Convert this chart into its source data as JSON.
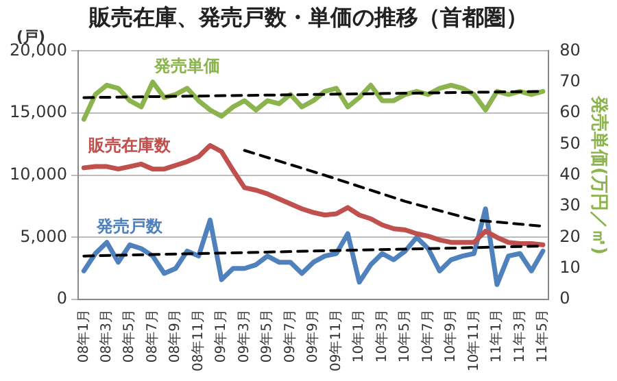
{
  "chart_data": {
    "type": "line",
    "title": "販売在庫、発売戸数・単価の推移（首都圏）",
    "ylabel": "(戸)",
    "y2label": "発売単価(万円／㎡)",
    "categories": [
      "08年1月",
      null,
      "08年3月",
      null,
      "08年5月",
      null,
      "08年7月",
      null,
      "08年9月",
      null,
      "08年11月",
      null,
      "09年1月",
      null,
      "09年3月",
      null,
      "09年5月",
      null,
      "09年7月",
      null,
      "09年9月",
      null,
      "09年11月",
      null,
      "10年1月",
      null,
      "10年3月",
      null,
      "10年5月",
      null,
      "10年7月",
      null,
      "10年9月",
      null,
      "10年11月",
      null,
      "11年1月",
      null,
      "11年3月",
      null,
      "11年5月"
    ],
    "series": [
      {
        "name": "発売単価",
        "color": "#8cb44e",
        "axis": "y2",
        "values": [
          58,
          66,
          69,
          68,
          64,
          62,
          70,
          65,
          66,
          68,
          64,
          61,
          59,
          62,
          64,
          61,
          64,
          63,
          66,
          62,
          64,
          67,
          68,
          62,
          65,
          69,
          64,
          64,
          66,
          67,
          66,
          68,
          69,
          68,
          66,
          61,
          67,
          66,
          67,
          66,
          67
        ]
      },
      {
        "name": "販売在庫数",
        "color": "#c0504d",
        "values": [
          10600,
          10700,
          10700,
          10500,
          10700,
          10900,
          10500,
          10500,
          10800,
          11100,
          11500,
          12400,
          11900,
          10400,
          9000,
          8800,
          8500,
          8100,
          7700,
          7300,
          7000,
          6800,
          6900,
          7400,
          6800,
          6500,
          6000,
          5700,
          5600,
          5300,
          5100,
          4800,
          4600,
          4600,
          4600,
          5500,
          5000,
          4600,
          4500,
          4500,
          4400
        ]
      },
      {
        "name": "発売戸数",
        "color": "#4f81bd",
        "values": [
          2300,
          3700,
          4600,
          3000,
          4400,
          4100,
          3500,
          2100,
          2500,
          3900,
          3500,
          6400,
          1600,
          2500,
          2500,
          2800,
          3500,
          3000,
          3000,
          2100,
          3000,
          3500,
          3700,
          5300,
          1400,
          2800,
          3700,
          3200,
          3900,
          5000,
          4100,
          2300,
          3200,
          3500,
          3700,
          7300,
          1200,
          3500,
          3700,
          2300,
          3900
        ]
      },
      {
        "color": "#000000",
        "axis": "y2",
        "line_style": "dashed",
        "values": [
          65,
          null,
          null,
          null,
          null,
          null,
          null,
          null,
          null,
          null,
          null,
          null,
          null,
          null,
          null,
          null,
          null,
          null,
          null,
          null,
          null,
          null,
          null,
          null,
          null,
          null,
          null,
          null,
          null,
          null,
          null,
          null,
          null,
          null,
          null,
          null,
          null,
          null,
          null,
          null,
          67
        ]
      },
      {
        "color": "#000000",
        "line_style": "dashed",
        "values": [
          3500,
          null,
          null,
          null,
          null,
          null,
          null,
          null,
          null,
          null,
          null,
          null,
          null,
          null,
          null,
          null,
          null,
          null,
          null,
          null,
          null,
          null,
          null,
          null,
          null,
          null,
          null,
          null,
          null,
          null,
          null,
          null,
          null,
          null,
          null,
          null,
          null,
          null,
          null,
          null,
          4300
        ]
      },
      {
        "color": "#000000",
        "line_style": "dashed",
        "values": [
          null,
          null,
          null,
          null,
          null,
          null,
          null,
          null,
          null,
          null,
          null,
          null,
          null,
          null,
          12000,
          null,
          null,
          null,
          null,
          null,
          null,
          10000,
          null,
          null,
          null,
          null,
          null,
          null,
          7900,
          null,
          null,
          null,
          null,
          null,
          6400,
          null,
          null,
          null,
          null,
          null,
          5900
        ]
      }
    ],
    "ylim": [
      0,
      20000
    ],
    "yticks": [
      0,
      {
        "value": 5000,
        "label": "5,000"
      },
      {
        "value": 10000,
        "label": "10,000"
      },
      {
        "value": 15000,
        "label": "15,000"
      },
      {
        "value": 20000,
        "label": "20,000"
      }
    ],
    "y2lim": [
      0,
      80
    ],
    "y2ticks": [
      0,
      10,
      20,
      30,
      40,
      50,
      60,
      70,
      80
    ],
    "grid": "y",
    "legend": false,
    "marker": "none",
    "line_style": "solid"
  }
}
